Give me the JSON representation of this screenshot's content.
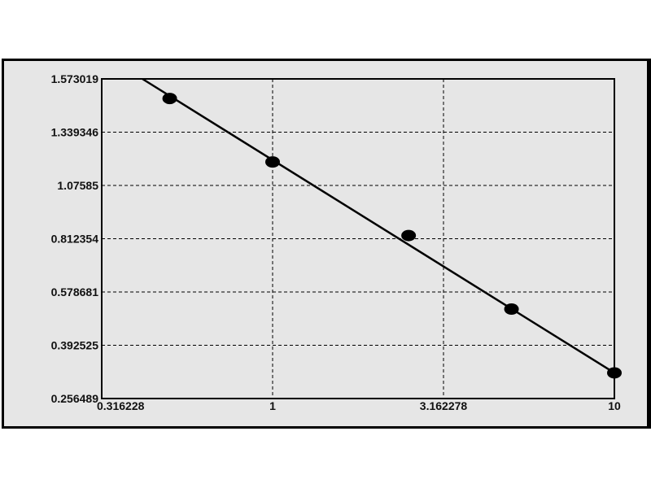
{
  "chart_data": {
    "type": "scatter",
    "title": "",
    "xlabel": "",
    "ylabel": "",
    "x_scale": "log",
    "xlim": [
      0.316228,
      10
    ],
    "ylim": [
      0.256489,
      1.573019
    ],
    "x_ticks": [
      "0.316228",
      "1",
      "3.162278",
      "10"
    ],
    "x_tick_values": [
      0.316228,
      1,
      3.162278,
      10
    ],
    "y_ticks": [
      "1.573019",
      "1.339346",
      "1.07585",
      "0.812354",
      "0.578681",
      "0.392525",
      "0.256489"
    ],
    "y_tick_values": [
      1.573019,
      1.339346,
      1.07585,
      0.812354,
      0.578681,
      0.392525,
      0.256489
    ],
    "grid": true,
    "grid_style": "dashed",
    "series": [
      {
        "type": "scatter",
        "x": [
          0.5,
          1,
          2.5,
          5,
          10
        ],
        "y": [
          1.487,
          1.192,
          0.828,
          0.519,
          0.322
        ],
        "color": "#000000"
      },
      {
        "type": "line",
        "x": [
          0.416,
          10
        ],
        "y": [
          1.573019,
          0.322
        ],
        "color": "#000000"
      }
    ]
  }
}
